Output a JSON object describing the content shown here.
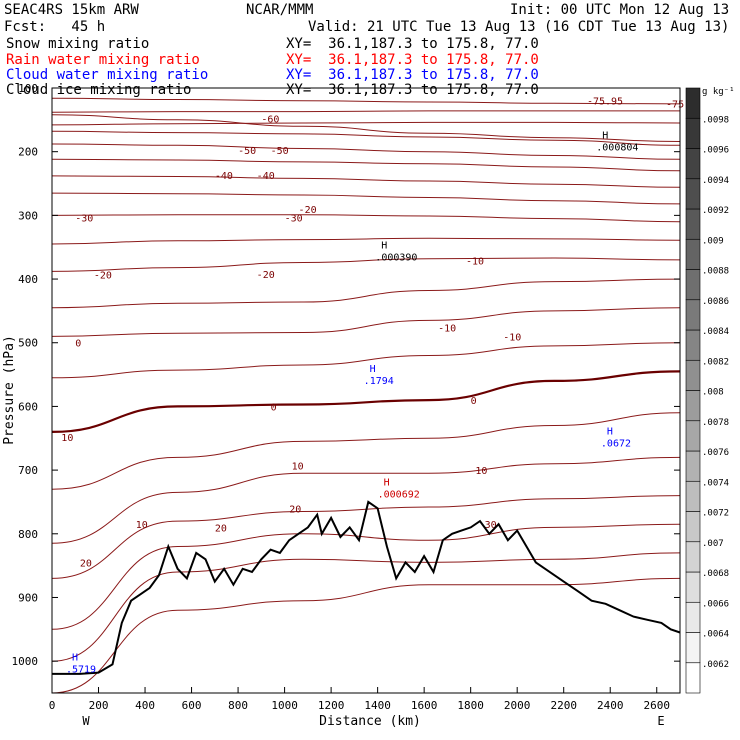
{
  "header": {
    "model": "SEAC4RS 15km ARW",
    "org": "NCAR/MMM",
    "init": "Init: 00 UTC Mon 12 Aug 13",
    "fcst": "Fcst:   45 h",
    "valid": "Valid: 21 UTC Tue 13 Aug 13 (16 CDT Tue 13 Aug 13)",
    "fields": [
      {
        "name": "Snow mixing ratio",
        "xy": "XY=  36.1,187.3 to 175.8, 77.0",
        "color": "#000000"
      },
      {
        "name": "Rain water mixing ratio",
        "xy": "XY=  36.1,187.3 to 175.8, 77.0",
        "color": "#ff0000"
      },
      {
        "name": "Cloud water mixing ratio",
        "xy": "XY=  36.1,187.3 to 175.8, 77.0",
        "color": "#0000ff"
      },
      {
        "name": "Cloud ice mixing ratio",
        "xy": "XY=  36.1,187.3 to 175.8, 77.0",
        "color": "#000000"
      }
    ]
  },
  "chart_data": {
    "type": "contour",
    "xlabel": "Distance (km)",
    "ylabel": "Pressure (hPa)",
    "xlim": [
      0,
      2700
    ],
    "ylim": [
      1050,
      100
    ],
    "x_ticks": [
      0,
      200,
      400,
      600,
      800,
      1000,
      1200,
      1400,
      1600,
      1800,
      2000,
      2200,
      2400,
      2600
    ],
    "y_ticks": [
      200,
      300,
      400,
      500,
      600,
      700,
      800,
      900,
      1000
    ],
    "y_tick_label_top": "100",
    "end_labels": {
      "left": "W",
      "right": "E"
    },
    "temperature_contours": [
      {
        "label": "-75",
        "p": [
          116,
          118,
          120,
          122,
          124,
          125
        ]
      },
      {
        "label": "-70",
        "p": [
          138,
          137,
          137,
          136,
          136,
          136
        ]
      },
      {
        "label": "-65",
        "p": [
          158,
          156,
          155,
          154,
          154,
          155
        ]
      },
      {
        "label": "-60",
        "p": [
          142,
          150,
          160,
          171,
          178,
          184
        ]
      },
      {
        "label": "-55",
        "p": [
          168,
          170,
          172,
          177,
          182,
          190
        ]
      },
      {
        "label": "-50",
        "p": [
          188,
          190,
          195,
          200,
          206,
          212
        ]
      },
      {
        "label": "-45",
        "p": [
          212,
          213,
          216,
          219,
          224,
          230
        ]
      },
      {
        "label": "-40",
        "p": [
          238,
          239,
          242,
          246,
          251,
          256
        ]
      },
      {
        "label": "-35",
        "p": [
          265,
          266,
          268,
          272,
          277,
          282
        ]
      },
      {
        "label": "-30",
        "p": [
          300,
          299,
          299,
          301,
          305,
          310
        ]
      },
      {
        "label": "-25",
        "p": [
          345,
          340,
          338,
          336,
          337,
          339
        ]
      },
      {
        "label": "-20",
        "p": [
          388,
          382,
          374,
          368,
          367,
          370
        ]
      },
      {
        "label": "-15",
        "p": [
          445,
          438,
          436,
          418,
          404,
          400
        ]
      },
      {
        "label": "-10",
        "p": [
          490,
          485,
          484,
          465,
          450,
          445
        ]
      },
      {
        "label": "-5",
        "p": [
          555,
          543,
          535,
          520,
          505,
          500
        ]
      },
      {
        "label": "0",
        "p": [
          640,
          600,
          597,
          590,
          560,
          545
        ]
      },
      {
        "label": "5",
        "p": [
          730,
          680,
          655,
          650,
          630,
          610
        ]
      },
      {
        "label": "10",
        "p": [
          815,
          735,
          705,
          705,
          690,
          680
        ]
      },
      {
        "label": "15",
        "p": [
          870,
          780,
          765,
          758,
          745,
          740
        ]
      },
      {
        "label": "20",
        "p": [
          950,
          820,
          800,
          810,
          790,
          785
        ]
      },
      {
        "label": "25",
        "p": [
          1000,
          860,
          840,
          845,
          840,
          830
        ]
      },
      {
        "label": "30",
        "p": [
          1050,
          920,
          905,
          880,
          880,
          870
        ]
      }
    ],
    "temperature_x": [
      0,
      540,
      1080,
      1620,
      2160,
      2700
    ],
    "contour_labels": [
      "-75.95",
      "-75",
      "-60",
      "-50",
      "-50",
      "-40",
      "-40",
      "-30",
      "-30",
      "-20",
      "-20",
      "-20",
      "-10",
      "-10",
      "-10",
      "0",
      "0",
      "0",
      "10",
      "10",
      "10",
      "10",
      "20",
      "20",
      "20",
      "30"
    ],
    "terrain": {
      "x": [
        0,
        60,
        120,
        200,
        260,
        300,
        340,
        380,
        420,
        460,
        500,
        540,
        580,
        620,
        660,
        700,
        740,
        780,
        820,
        860,
        900,
        940,
        980,
        1020,
        1060,
        1100,
        1140,
        1160,
        1200,
        1240,
        1280,
        1320,
        1360,
        1400,
        1440,
        1480,
        1520,
        1560,
        1600,
        1640,
        1680,
        1720,
        1760,
        1800,
        1840,
        1880,
        1920,
        1960,
        2000,
        2040,
        2080,
        2120,
        2160,
        2200,
        2260,
        2320,
        2380,
        2440,
        2500,
        2560,
        2620,
        2660,
        2700
      ],
      "p": [
        1020,
        1020,
        1020,
        1018,
        1005,
        940,
        905,
        895,
        885,
        865,
        820,
        855,
        870,
        830,
        840,
        875,
        855,
        880,
        855,
        860,
        840,
        825,
        830,
        810,
        800,
        790,
        770,
        800,
        775,
        805,
        790,
        810,
        750,
        760,
        820,
        870,
        845,
        860,
        835,
        860,
        810,
        800,
        795,
        790,
        780,
        800,
        785,
        810,
        795,
        820,
        845,
        855,
        865,
        875,
        890,
        905,
        910,
        920,
        930,
        935,
        940,
        950,
        955
      ]
    },
    "maxima": [
      {
        "label": ".000804",
        "x": 2340,
        "p": 195,
        "color": "#000000"
      },
      {
        "label": ".000390",
        "x": 1390,
        "p": 368,
        "color": "#000000"
      },
      {
        "label": ".1794",
        "x": 1340,
        "p": 562,
        "color": "#0000ff"
      },
      {
        "label": ".0672",
        "x": 2360,
        "p": 660,
        "color": "#0000ff"
      },
      {
        "label": ".000692",
        "x": 1400,
        "p": 740,
        "color": "#cc0000"
      },
      {
        "label": ".5719",
        "x": 60,
        "p": 1015,
        "color": "#0000ff"
      }
    ],
    "colorbar": {
      "unit": "g kg⁻¹",
      "ticks": [
        ".0062",
        ".0064",
        ".0066",
        ".0068",
        ".007",
        ".0072",
        ".0074",
        ".0076",
        ".0078",
        ".008",
        ".0082",
        ".0084",
        ".0086",
        ".0088",
        ".009",
        ".0092",
        ".0094",
        ".0096",
        ".0098"
      ]
    }
  }
}
